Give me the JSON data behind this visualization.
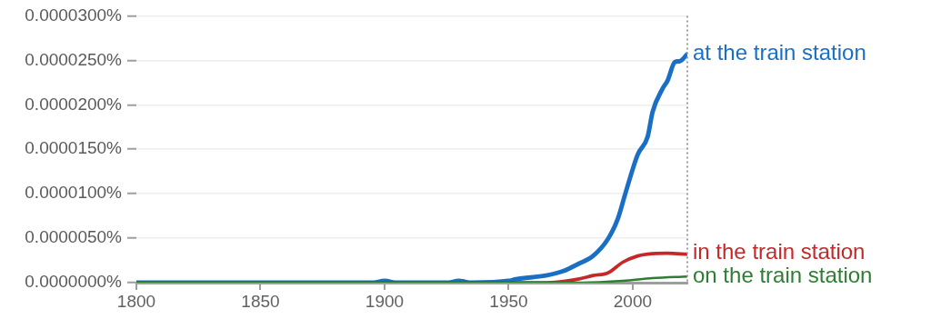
{
  "chart_data": {
    "type": "line",
    "xlim": [
      1800,
      2022
    ],
    "xticks": [
      1800,
      1850,
      1900,
      1950,
      2000
    ],
    "ylim": [
      0,
      3e-05
    ],
    "yticks": [
      {
        "value": 0,
        "label": "0.0000000%"
      },
      {
        "value": 5e-06,
        "label": "0.0000050%"
      },
      {
        "value": 1e-05,
        "label": "0.0000100%"
      },
      {
        "value": 1.5e-05,
        "label": "0.0000150%"
      },
      {
        "value": 2e-05,
        "label": "0.0000200%"
      },
      {
        "value": 2.5e-05,
        "label": "0.0000250%"
      },
      {
        "value": 3e-05,
        "label": "0.0000300%"
      }
    ],
    "grid": "y",
    "marker": "none",
    "line_style": "solid",
    "series": [
      {
        "name": "at the train station",
        "color": "#1a6fc4",
        "x": [
          1800,
          1895,
          1900,
          1905,
          1925,
          1930,
          1935,
          1950,
          1953,
          1965,
          1972,
          1978,
          1984,
          1990,
          1994,
          1997,
          2002,
          2006,
          2008,
          2012,
          2014,
          2017,
          2019,
          2022
        ],
        "values": [
          0,
          0,
          2e-07,
          0,
          0,
          2e-07,
          0,
          2e-07,
          4e-07,
          8e-07,
          1.3e-06,
          2.1e-06,
          3e-06,
          4.9e-06,
          7.2e-06,
          1e-05,
          1.44e-05,
          1.64e-05,
          1.92e-05,
          2.18e-05,
          2.27e-05,
          2.48e-05,
          2.49e-05,
          2.57e-05
        ]
      },
      {
        "name": "in the train station",
        "color": "#c62828",
        "x": [
          1800,
          1965,
          1978,
          1984,
          1990,
          1996,
          2002,
          2006,
          2014,
          2022
        ],
        "values": [
          0,
          0,
          4e-07,
          8e-07,
          1.1e-06,
          2.3e-06,
          3e-06,
          3.2e-06,
          3.3e-06,
          3.2e-06
        ]
      },
      {
        "name": "on the train station",
        "color": "#2e7d32",
        "x": [
          1800,
          1980,
          1996,
          2008,
          2022
        ],
        "values": [
          0,
          0,
          2e-07,
          5e-07,
          7e-07
        ]
      }
    ]
  }
}
